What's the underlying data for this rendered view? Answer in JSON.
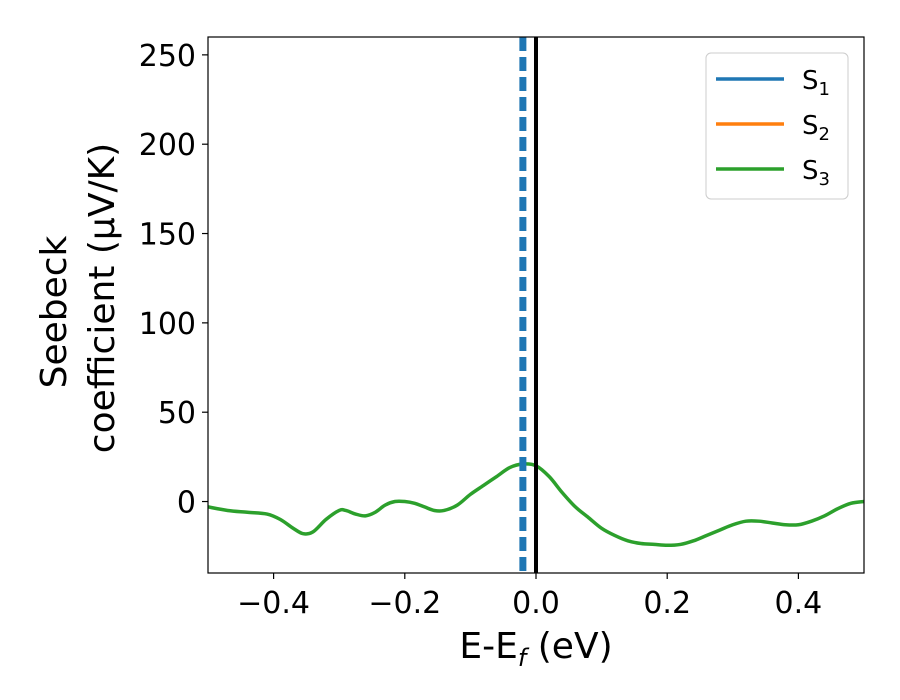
{
  "chart_data": {
    "type": "line",
    "xlabel": {
      "base": "E-E",
      "sub": "f",
      "rest": " (eV)"
    },
    "ylabel": {
      "line1": "Seebeck",
      "line2": "coefficient  (μV/K)"
    },
    "xlim": [
      -0.5,
      0.5
    ],
    "ylim": [
      -40,
      260
    ],
    "xticks": [
      -0.4,
      -0.2,
      0.0,
      0.2,
      0.4
    ],
    "xtick_labels": [
      "−0.4",
      "−0.2",
      "0.0",
      "0.2",
      "0.4"
    ],
    "yticks": [
      0,
      50,
      100,
      150,
      200,
      250
    ],
    "ytick_labels": [
      "0",
      "50",
      "100",
      "150",
      "200",
      "250"
    ],
    "grid": false,
    "legend_position": "top-right",
    "series": [
      {
        "name": "S",
        "sub": "1",
        "color": "#1f77b4",
        "x": [],
        "y": []
      },
      {
        "name": "S",
        "sub": "2",
        "color": "#ff7f0e",
        "x": [],
        "y": []
      },
      {
        "name": "S",
        "sub": "3",
        "color": "#2ca02c",
        "x": [
          -0.5,
          -0.47,
          -0.44,
          -0.41,
          -0.39,
          -0.37,
          -0.355,
          -0.34,
          -0.32,
          -0.3,
          -0.29,
          -0.275,
          -0.26,
          -0.245,
          -0.23,
          -0.215,
          -0.2,
          -0.185,
          -0.17,
          -0.155,
          -0.14,
          -0.12,
          -0.1,
          -0.08,
          -0.06,
          -0.04,
          -0.02,
          0.0,
          0.02,
          0.04,
          0.06,
          0.08,
          0.1,
          0.12,
          0.14,
          0.16,
          0.18,
          0.2,
          0.22,
          0.24,
          0.26,
          0.28,
          0.3,
          0.32,
          0.34,
          0.36,
          0.38,
          0.4,
          0.42,
          0.44,
          0.46,
          0.48,
          0.5
        ],
        "y": [
          -3,
          -5,
          -6,
          -7,
          -10,
          -15,
          -18,
          -17,
          -10,
          -5,
          -5,
          -7,
          -8,
          -6,
          -2,
          0,
          0,
          -1,
          -3,
          -5,
          -5,
          -2,
          4,
          9,
          14,
          19,
          21,
          20,
          14,
          5,
          -3,
          -9,
          -15,
          -19,
          -22,
          -23.5,
          -24,
          -24.5,
          -24,
          -22,
          -19,
          -16,
          -13,
          -11,
          -11,
          -12,
          -13,
          -13,
          -11,
          -8,
          -4,
          -1,
          0
        ]
      }
    ],
    "vlines": [
      {
        "x": -0.02,
        "color": "#1f77b4",
        "style": "dashed"
      },
      {
        "x": 0.0,
        "color": "#000000",
        "style": "solid"
      }
    ]
  }
}
